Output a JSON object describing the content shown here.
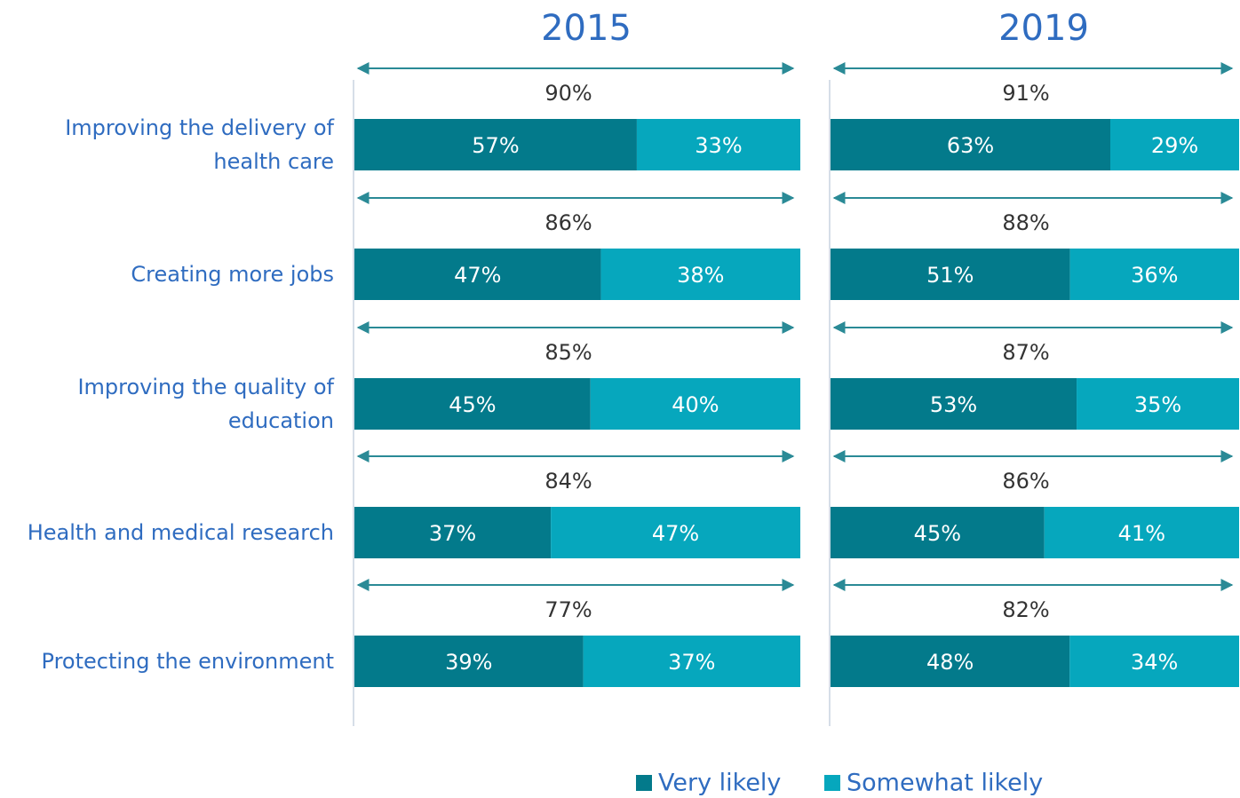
{
  "chart_data": [
    {
      "type": "bar",
      "title": "2015",
      "categories": [
        "Improving the delivery of health care",
        "Creating more jobs",
        "Improving the quality of education",
        "Health and medical research",
        "Protecting the environment"
      ],
      "series": [
        {
          "name": "Very likely",
          "color": "#037a8b",
          "values": [
            57,
            47,
            45,
            37,
            39
          ],
          "value_labels": [
            "57%",
            "47%",
            "45%",
            "37%",
            "39%"
          ]
        },
        {
          "name": "Somewhat likely",
          "color": "#06a7bd",
          "values": [
            33,
            38,
            40,
            47,
            37
          ],
          "value_labels": [
            "33%",
            "38%",
            "40%",
            "47%",
            "37%"
          ]
        }
      ],
      "totals": [
        90,
        86,
        85,
        84,
        77
      ],
      "total_labels": [
        "90%",
        "86%",
        "85%",
        "84%",
        "77%"
      ]
    },
    {
      "type": "bar",
      "title": "2019",
      "series": [
        {
          "color": "#037a8b",
          "values": [
            63,
            51,
            53,
            45,
            48
          ],
          "value_labels": [
            "63%",
            "51%",
            "53%",
            "45%",
            "48%"
          ]
        },
        {
          "color": "#06a7bd",
          "values": [
            29,
            36,
            35,
            41,
            34
          ],
          "value_labels": [
            "29%",
            "36%",
            "35%",
            "41%",
            "34%"
          ]
        }
      ],
      "totals": [
        91,
        88,
        87,
        86,
        82
      ],
      "total_labels": [
        "91%",
        "88%",
        "87%",
        "86%",
        "82%"
      ]
    }
  ]
}
